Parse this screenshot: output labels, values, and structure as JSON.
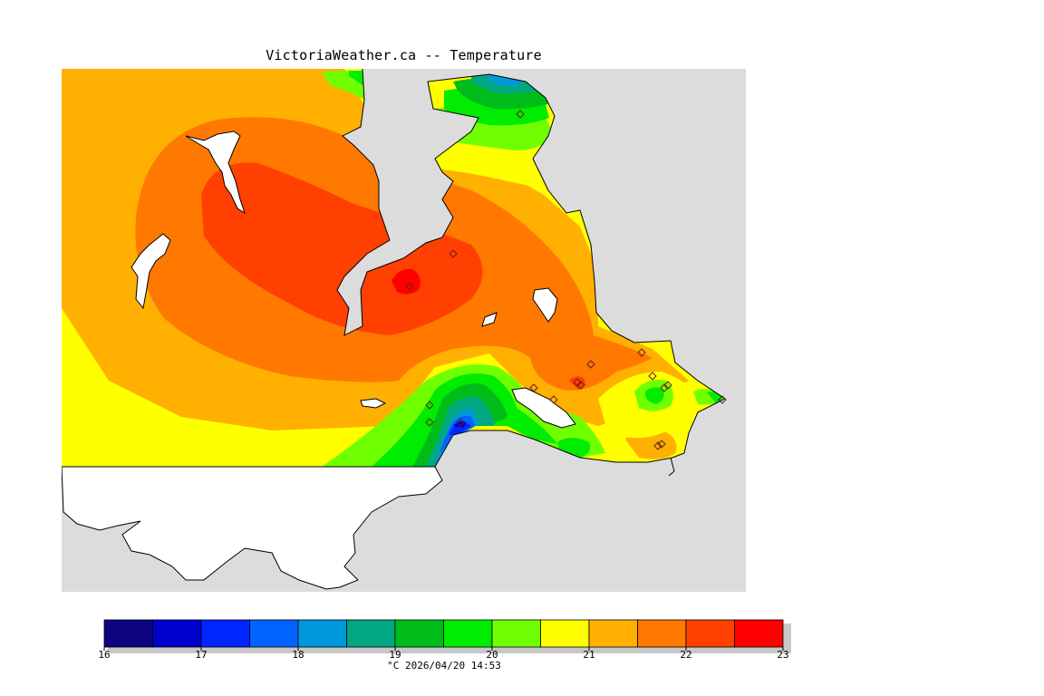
{
  "title": "VictoriaWeather.ca -- Temperature",
  "legend": {
    "ticks": [
      "16",
      "17",
      "18",
      "19",
      "20",
      "21",
      "22",
      "23"
    ],
    "caption": "°C  2026/04/20 14:53",
    "bands": [
      {
        "from": 16.0,
        "to": 16.5,
        "color": "#0c0480"
      },
      {
        "from": 16.5,
        "to": 17.0,
        "color": "#0000cc"
      },
      {
        "from": 17.0,
        "to": 17.5,
        "color": "#0026ff"
      },
      {
        "from": 17.5,
        "to": 18.0,
        "color": "#0063ff"
      },
      {
        "from": 18.0,
        "to": 18.5,
        "color": "#0098dc"
      },
      {
        "from": 18.5,
        "to": 19.0,
        "color": "#00a780"
      },
      {
        "from": 19.0,
        "to": 19.5,
        "color": "#00bc1a"
      },
      {
        "from": 19.5,
        "to": 20.0,
        "color": "#00ec00"
      },
      {
        "from": 20.0,
        "to": 20.5,
        "color": "#70ff00"
      },
      {
        "from": 20.5,
        "to": 21.0,
        "color": "#ffff00"
      },
      {
        "from": 21.0,
        "to": 21.5,
        "color": "#ffb000"
      },
      {
        "from": 21.5,
        "to": 22.0,
        "color": "#ff7800"
      },
      {
        "from": 22.0,
        "to": 22.5,
        "color": "#ff4000"
      },
      {
        "from": 22.5,
        "to": 23.0,
        "color": "#ff0000"
      }
    ]
  },
  "colors": {
    "land_outside": "#dcdcdc",
    "water": "#ffffff",
    "coast": "#000000",
    "station_marker": "#d06060"
  }
}
